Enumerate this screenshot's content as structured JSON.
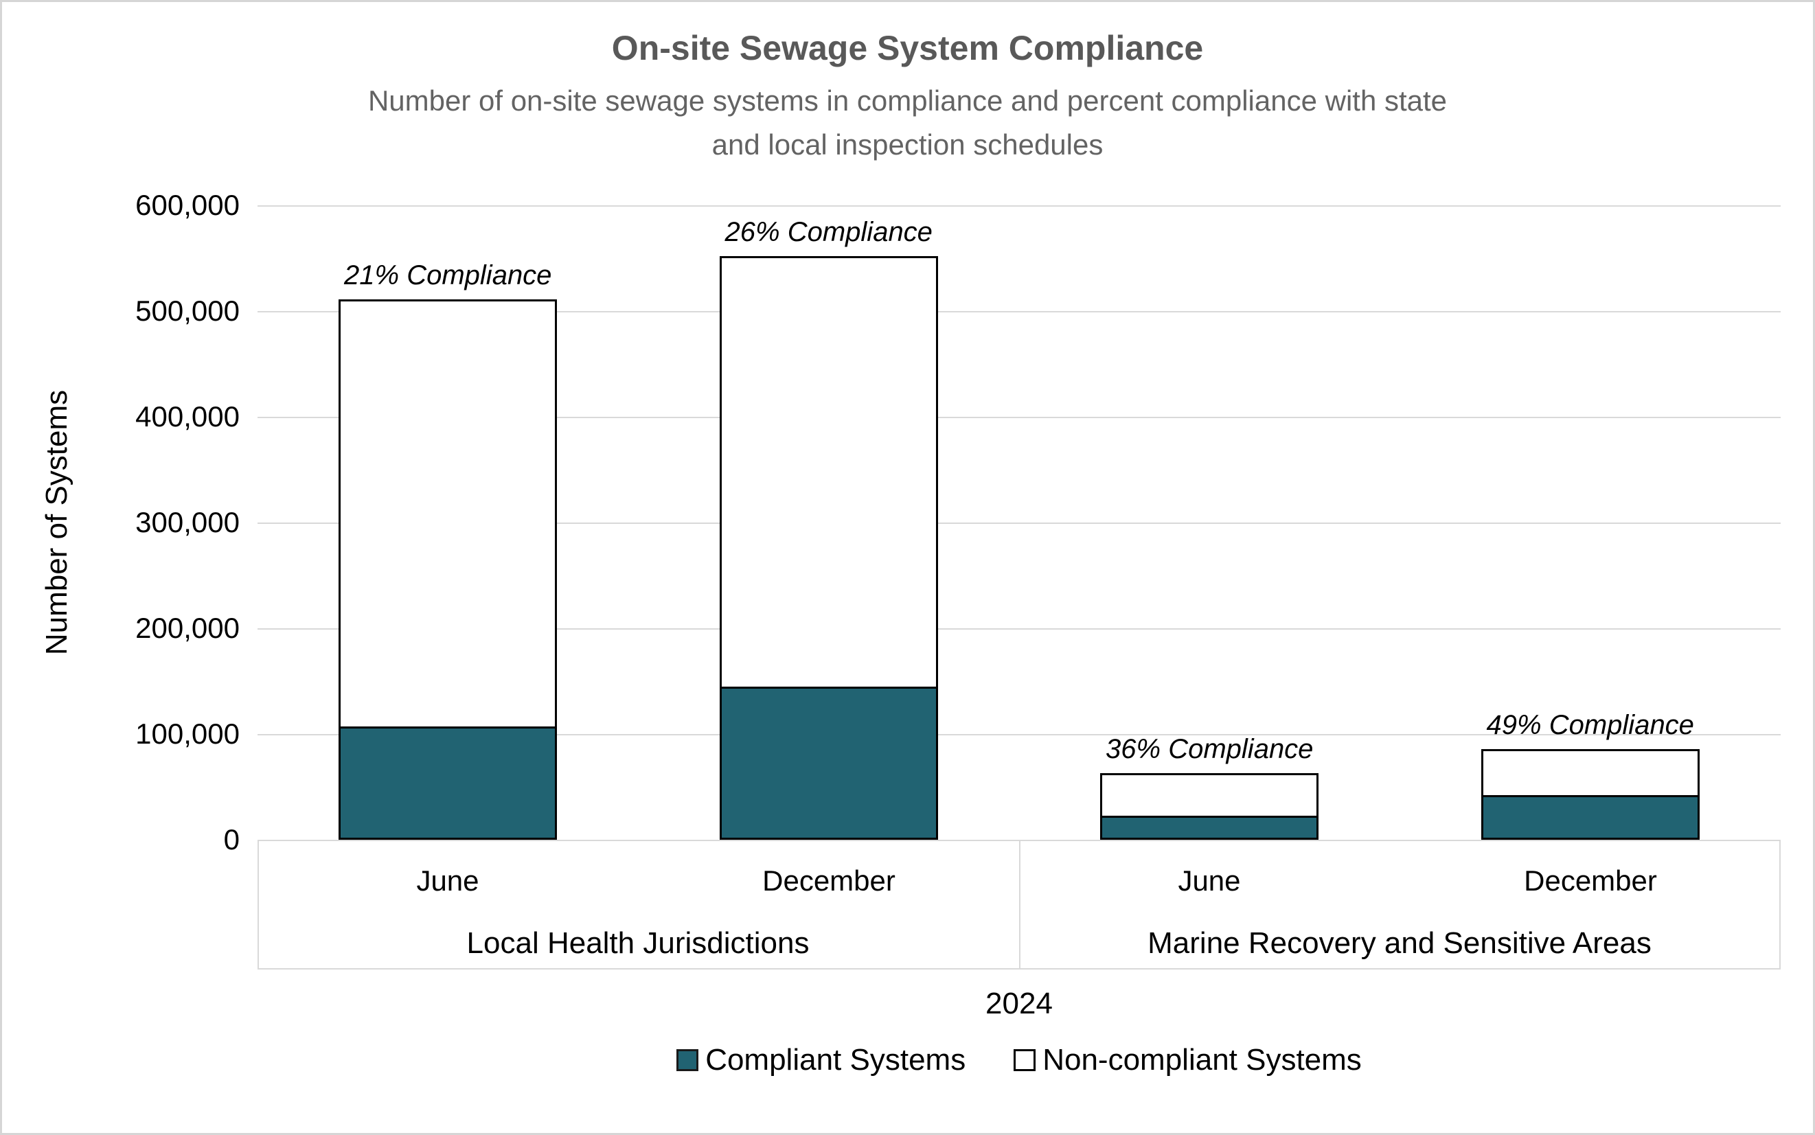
{
  "title": "On-site Sewage System Compliance",
  "subtitle": {
    "line1": "Number of on-site sewage systems in compliance and percent compliance with state",
    "line2": "and local inspection schedules"
  },
  "y_axis": {
    "title": "Number of Systems",
    "ticks": [
      "600,000",
      "500,000",
      "400,000",
      "300,000",
      "200,000",
      "100,000",
      "0"
    ]
  },
  "x_axis": {
    "title": "2024",
    "month_labels": [
      "June",
      "December",
      "June",
      "December"
    ],
    "groups": [
      {
        "label": "Local Health Jurisdictions"
      },
      {
        "label": "Marine Recovery and Sensitive Areas"
      }
    ]
  },
  "legend": {
    "items": [
      {
        "label": "Compliant Systems",
        "swatch": "compliant"
      },
      {
        "label": "Non-compliant Systems",
        "swatch": "noncompliant"
      }
    ]
  },
  "colors": {
    "compliant_fill": "#216372",
    "noncompliant_fill": "#FFFFFF",
    "bar_border": "#000000",
    "gridline": "#D9D9D9",
    "title_text": "#595959"
  },
  "chart_data": {
    "type": "bar",
    "stacked": true,
    "title": "On-site Sewage System Compliance",
    "subtitle": "Number of on-site sewage systems in compliance and percent compliance with state and local inspection schedules",
    "categories": [
      "June (Local Health Jurisdictions)",
      "December (Local Health Jurisdictions)",
      "June (Marine Recovery and Sensitive Areas)",
      "December (Marine Recovery and Sensitive Areas)"
    ],
    "series": [
      {
        "name": "Compliant Systems",
        "color": "#216372",
        "values": [
          107000,
          145000,
          22500,
          42000
        ]
      },
      {
        "name": "Non-compliant Systems",
        "color": "#FFFFFF",
        "values": [
          404000,
          407000,
          40500,
          44000
        ]
      }
    ],
    "totals": [
      511000,
      552000,
      63000,
      86000
    ],
    "annotations": [
      "21% Compliance",
      "26% Compliance",
      "36% Compliance",
      "49% Compliance"
    ],
    "xlabel": "2024",
    "ylabel": "Number of Systems",
    "ylim": [
      0,
      600000
    ],
    "ytick_step": 100000,
    "grid": true,
    "legend_position": "bottom"
  }
}
